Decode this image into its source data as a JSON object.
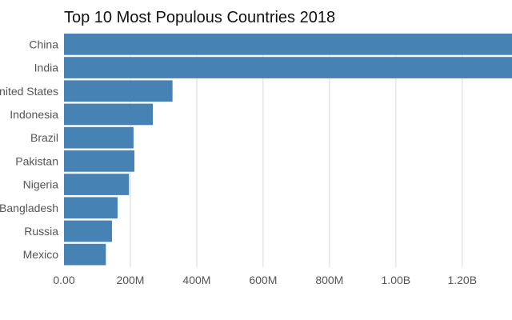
{
  "chart_data": {
    "type": "bar",
    "orientation": "horizontal",
    "title": "Top 10 Most Populous Countries 2018",
    "categories": [
      "China",
      "India",
      "United States",
      "Indonesia",
      "Brazil",
      "Pakistan",
      "Nigeria",
      "Bangladesh",
      "Russia",
      "Mexico"
    ],
    "values": [
      1393000000,
      1353000000,
      327000000,
      267700000,
      209500000,
      212200000,
      195900000,
      161400000,
      144500000,
      126200000
    ],
    "xlabel": "",
    "ylabel": "",
    "xlim": [
      0,
      1350000000
    ],
    "x_ticks": [
      0,
      200000000,
      400000000,
      600000000,
      800000000,
      1000000000,
      1200000000
    ],
    "x_tick_labels": [
      "0.00",
      "200M",
      "400M",
      "600M",
      "800M",
      "1.00B",
      "1.20B"
    ],
    "grid": "vertical",
    "legend": "none",
    "bar_color": "#4682b4",
    "grid_color": "#d9d9d9",
    "tick_label_color": "#555555"
  }
}
